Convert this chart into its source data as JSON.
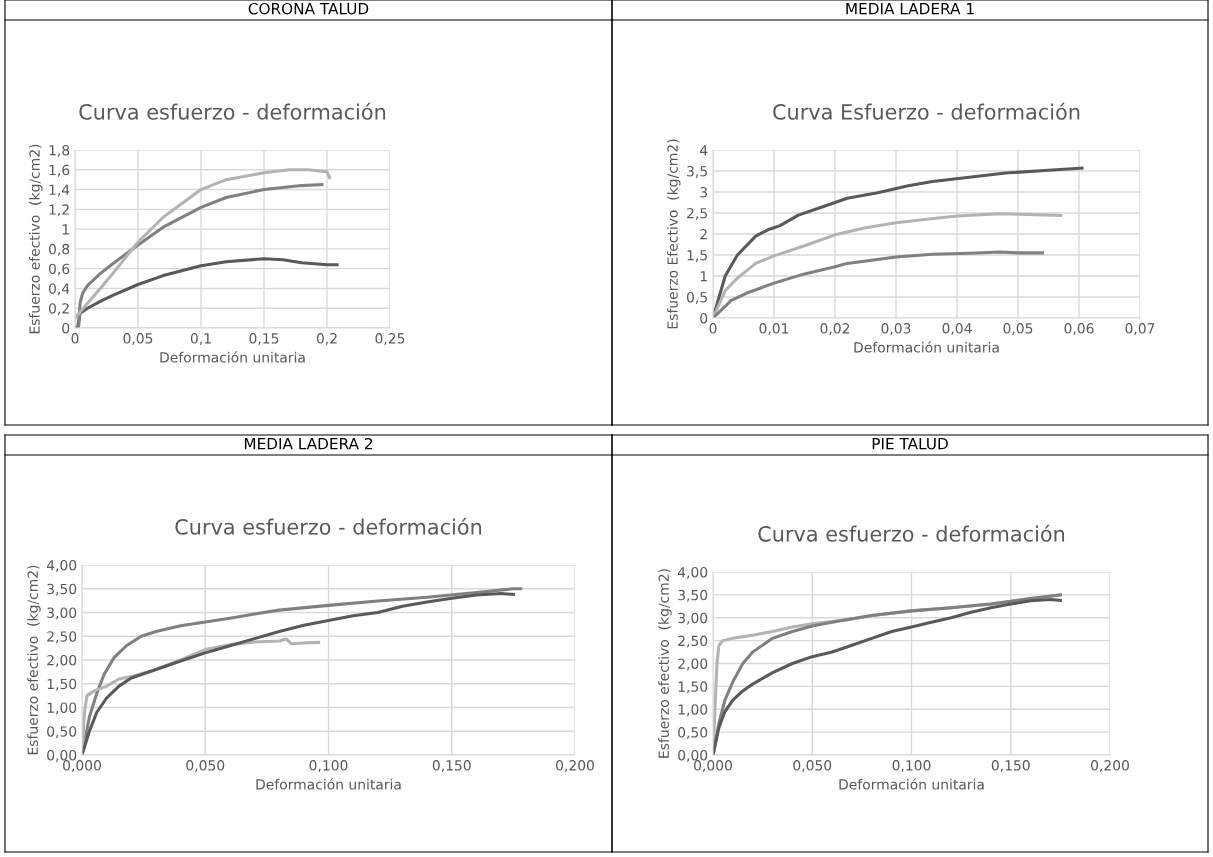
{
  "chart_data": [
    {
      "type": "line",
      "title": "CORONA TALUD",
      "subtitle": "Curva esfuerzo - deformación",
      "xlabel": "Deformación unitaria",
      "ylabel": "Esfuerzo efectivo  (kg/cm2)",
      "xlim": [
        0,
        0.25
      ],
      "ylim": [
        0,
        1.8
      ],
      "xticks": [
        {
          "value": 0,
          "label": "0"
        },
        {
          "value": 0.05,
          "label": "0,05"
        },
        {
          "value": 0.1,
          "label": "0,1"
        },
        {
          "value": 0.15,
          "label": "0,15"
        },
        {
          "value": 0.2,
          "label": "0,2"
        },
        {
          "value": 0.25,
          "label": "0,25"
        }
      ],
      "yticks": [
        {
          "value": 0,
          "label": "0"
        },
        {
          "value": 0.2,
          "label": "0,2"
        },
        {
          "value": 0.4,
          "label": "0,4"
        },
        {
          "value": 0.6,
          "label": "0,6"
        },
        {
          "value": 0.8,
          "label": "0,8"
        },
        {
          "value": 1,
          "label": "1"
        },
        {
          "value": 1.2,
          "label": "1,2"
        },
        {
          "value": 1.4,
          "label": "1,4"
        },
        {
          "value": 1.6,
          "label": "1,6"
        },
        {
          "value": 1.8,
          "label": "1,8"
        }
      ],
      "grid": true,
      "marker": "none",
      "line_style": "solid",
      "series": [
        {
          "color": "#595959",
          "x": [
            0.002,
            0.004,
            0.01,
            0.02,
            0.03,
            0.05,
            0.07,
            0.1,
            0.12,
            0.15,
            0.165,
            0.18,
            0.2,
            0.208
          ],
          "values": [
            0,
            0.15,
            0.2,
            0.27,
            0.33,
            0.44,
            0.53,
            0.63,
            0.67,
            0.7,
            0.69,
            0.66,
            0.64,
            0.64
          ]
        },
        {
          "color": "#808080",
          "x": [
            0,
            0.003,
            0.004,
            0.006,
            0.01,
            0.02,
            0.03,
            0.05,
            0.07,
            0.1,
            0.12,
            0.15,
            0.18,
            0.196
          ],
          "values": [
            0,
            0.02,
            0.25,
            0.35,
            0.43,
            0.55,
            0.65,
            0.84,
            1.02,
            1.22,
            1.32,
            1.4,
            1.44,
            1.45
          ]
        },
        {
          "color": "#b3b3b3",
          "x": [
            0,
            0.01,
            0.02,
            0.03,
            0.05,
            0.07,
            0.1,
            0.12,
            0.15,
            0.17,
            0.185,
            0.2,
            0.202
          ],
          "values": [
            0.1,
            0.25,
            0.4,
            0.55,
            0.87,
            1.12,
            1.4,
            1.5,
            1.57,
            1.6,
            1.6,
            1.58,
            1.52
          ]
        }
      ]
    },
    {
      "type": "line",
      "title": "MEDIA LADERA 1",
      "subtitle": "Curva Esfuerzo - deformación",
      "xlabel": "Deformación unitaria",
      "ylabel": "Esfuerzo Efectivo  (kg/cm2)",
      "xlim": [
        0,
        0.07
      ],
      "ylim": [
        0,
        4
      ],
      "xticks": [
        {
          "value": 0,
          "label": "0"
        },
        {
          "value": 0.01,
          "label": "0,01"
        },
        {
          "value": 0.02,
          "label": "0,02"
        },
        {
          "value": 0.03,
          "label": "0,03"
        },
        {
          "value": 0.04,
          "label": "0,04"
        },
        {
          "value": 0.05,
          "label": "0,05"
        },
        {
          "value": 0.06,
          "label": "0,06"
        },
        {
          "value": 0.07,
          "label": "0,07"
        }
      ],
      "yticks": [
        {
          "value": 0,
          "label": "0"
        },
        {
          "value": 0.5,
          "label": "0,5"
        },
        {
          "value": 1,
          "label": "1"
        },
        {
          "value": 1.5,
          "label": "1,5"
        },
        {
          "value": 2,
          "label": "2"
        },
        {
          "value": 2.5,
          "label": "2,5"
        },
        {
          "value": 3,
          "label": "3"
        },
        {
          "value": 3.5,
          "label": "3,5"
        },
        {
          "value": 4,
          "label": "4"
        }
      ],
      "grid": true,
      "marker": "none",
      "line_style": "solid",
      "series": [
        {
          "color": "#595959",
          "x": [
            0,
            0.002,
            0.004,
            0.007,
            0.009,
            0.011,
            0.014,
            0.018,
            0.022,
            0.027,
            0.032,
            0.036,
            0.042,
            0.048,
            0.055,
            0.0605
          ],
          "values": [
            0,
            1.0,
            1.5,
            1.95,
            2.1,
            2.2,
            2.45,
            2.65,
            2.85,
            2.98,
            3.15,
            3.25,
            3.35,
            3.45,
            3.52,
            3.57
          ]
        },
        {
          "color": "#b3b3b3",
          "x": [
            0,
            0.002,
            0.004,
            0.007,
            0.01,
            0.015,
            0.02,
            0.025,
            0.03,
            0.035,
            0.04,
            0.047,
            0.05,
            0.057
          ],
          "values": [
            0,
            0.65,
            0.95,
            1.3,
            1.48,
            1.72,
            1.98,
            2.15,
            2.27,
            2.35,
            2.43,
            2.48,
            2.47,
            2.44
          ]
        },
        {
          "color": "#808080",
          "x": [
            0,
            0.003,
            0.006,
            0.01,
            0.015,
            0.02,
            0.022,
            0.03,
            0.036,
            0.042,
            0.047,
            0.05,
            0.054
          ],
          "values": [
            0,
            0.42,
            0.62,
            0.83,
            1.05,
            1.22,
            1.3,
            1.45,
            1.52,
            1.54,
            1.57,
            1.55,
            1.55
          ]
        }
      ]
    },
    {
      "type": "line",
      "title": "MEDIA LADERA 2",
      "subtitle": "Curva esfuerzo - deformación",
      "xlabel": "Deformación unitaria",
      "ylabel": "Esfuerzo efectivo  (kg/cm2)",
      "xlim": [
        0,
        0.2
      ],
      "ylim": [
        0,
        4
      ],
      "xticks": [
        {
          "value": 0,
          "label": "0,000"
        },
        {
          "value": 0.05,
          "label": "0,050"
        },
        {
          "value": 0.1,
          "label": "0,100"
        },
        {
          "value": 0.15,
          "label": "0,150"
        },
        {
          "value": 0.2,
          "label": "0,200"
        }
      ],
      "yticks": [
        {
          "value": 0,
          "label": "0,00"
        },
        {
          "value": 0.5,
          "label": "0,50"
        },
        {
          "value": 1,
          "label": "1,00"
        },
        {
          "value": 1.5,
          "label": "1,50"
        },
        {
          "value": 2,
          "label": "2,00"
        },
        {
          "value": 2.5,
          "label": "2,50"
        },
        {
          "value": 3,
          "label": "3,00"
        },
        {
          "value": 3.5,
          "label": "3,50"
        },
        {
          "value": 4,
          "label": "4,00"
        }
      ],
      "grid": true,
      "marker": "none",
      "line_style": "solid",
      "series": [
        {
          "color": "#808080",
          "x": [
            0,
            0.003,
            0.006,
            0.009,
            0.013,
            0.018,
            0.024,
            0.03,
            0.04,
            0.05,
            0.06,
            0.07,
            0.08,
            0.1,
            0.12,
            0.14,
            0.16,
            0.175,
            0.178
          ],
          "values": [
            0,
            0.8,
            1.3,
            1.7,
            2.05,
            2.3,
            2.5,
            2.6,
            2.72,
            2.8,
            2.88,
            2.97,
            3.05,
            3.15,
            3.24,
            3.32,
            3.42,
            3.5,
            3.5
          ]
        },
        {
          "color": "#b3b3b3",
          "x": [
            0,
            0.001,
            0.002,
            0.005,
            0.01,
            0.015,
            0.02,
            0.03,
            0.04,
            0.05,
            0.06,
            0.07,
            0.08,
            0.083,
            0.085,
            0.09,
            0.096
          ],
          "values": [
            0,
            0.9,
            1.25,
            1.35,
            1.45,
            1.6,
            1.65,
            1.8,
            2.0,
            2.22,
            2.32,
            2.38,
            2.4,
            2.44,
            2.34,
            2.36,
            2.37
          ]
        },
        {
          "color": "#595959",
          "x": [
            0,
            0.003,
            0.006,
            0.01,
            0.015,
            0.02,
            0.03,
            0.04,
            0.05,
            0.06,
            0.07,
            0.08,
            0.09,
            0.1,
            0.11,
            0.12,
            0.13,
            0.14,
            0.15,
            0.16,
            0.17,
            0.175
          ],
          "values": [
            0,
            0.5,
            0.9,
            1.2,
            1.45,
            1.62,
            1.8,
            1.98,
            2.15,
            2.3,
            2.45,
            2.6,
            2.73,
            2.83,
            2.93,
            3.0,
            3.13,
            3.22,
            3.3,
            3.37,
            3.4,
            3.38
          ]
        }
      ]
    },
    {
      "type": "line",
      "title": "PIE TALUD",
      "subtitle": "Curva esfuerzo - deformación",
      "xlabel": "Deformación unitaria",
      "ylabel": "Esfuerzo efectivo  (kg/cm2)",
      "xlim": [
        0,
        0.2
      ],
      "ylim": [
        0,
        4
      ],
      "xticks": [
        {
          "value": 0,
          "label": "0,000"
        },
        {
          "value": 0.05,
          "label": "0,050"
        },
        {
          "value": 0.1,
          "label": "0,100"
        },
        {
          "value": 0.15,
          "label": "0,150"
        },
        {
          "value": 0.2,
          "label": "0,200"
        }
      ],
      "yticks": [
        {
          "value": 0,
          "label": "0,00"
        },
        {
          "value": 0.5,
          "label": "0,50"
        },
        {
          "value": 1,
          "label": "1,00"
        },
        {
          "value": 1.5,
          "label": "1,50"
        },
        {
          "value": 2,
          "label": "2,00"
        },
        {
          "value": 2.5,
          "label": "2,50"
        },
        {
          "value": 3,
          "label": "3,00"
        },
        {
          "value": 3.5,
          "label": "3,50"
        },
        {
          "value": 4,
          "label": "4,00"
        }
      ],
      "grid": true,
      "marker": "none",
      "line_style": "solid",
      "series": [
        {
          "color": "#b3b3b3",
          "x": [
            0,
            0.001,
            0.002,
            0.003,
            0.005,
            0.01,
            0.02,
            0.03,
            0.04,
            0.05,
            0.06,
            0.07,
            0.08,
            0.1,
            0.12,
            0.14,
            0.16,
            0.175
          ],
          "values": [
            0,
            1.0,
            2.0,
            2.4,
            2.5,
            2.55,
            2.62,
            2.7,
            2.8,
            2.87,
            2.92,
            2.97,
            3.05,
            3.15,
            3.22,
            3.3,
            3.42,
            3.5
          ]
        },
        {
          "color": "#808080",
          "x": [
            0,
            0.003,
            0.006,
            0.01,
            0.015,
            0.02,
            0.03,
            0.04,
            0.05,
            0.06,
            0.07,
            0.08,
            0.1,
            0.12,
            0.14,
            0.16,
            0.175
          ],
          "values": [
            0,
            0.7,
            1.2,
            1.6,
            2.0,
            2.25,
            2.55,
            2.7,
            2.82,
            2.9,
            2.98,
            3.05,
            3.15,
            3.22,
            3.3,
            3.42,
            3.5
          ]
        },
        {
          "color": "#595959",
          "x": [
            0,
            0.003,
            0.006,
            0.01,
            0.015,
            0.02,
            0.03,
            0.04,
            0.05,
            0.06,
            0.07,
            0.08,
            0.09,
            0.1,
            0.11,
            0.12,
            0.13,
            0.14,
            0.15,
            0.16,
            0.17,
            0.175
          ],
          "values": [
            0,
            0.6,
            0.95,
            1.2,
            1.4,
            1.55,
            1.8,
            2.0,
            2.15,
            2.25,
            2.4,
            2.55,
            2.7,
            2.8,
            2.9,
            3.0,
            3.12,
            3.22,
            3.3,
            3.37,
            3.4,
            3.38
          ]
        }
      ]
    }
  ]
}
